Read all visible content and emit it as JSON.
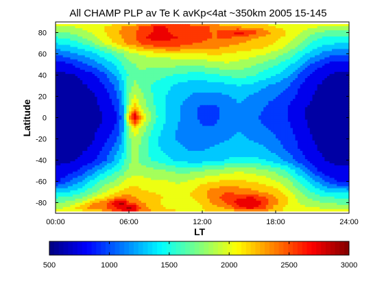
{
  "chart_data": {
    "type": "heatmap",
    "title": "All CHAMP PLP av Te K avKp<4at ~350km 2005 15-145",
    "xlabel": "LT",
    "ylabel": "Latitude",
    "x_ticks": [
      "00:00",
      "06:00",
      "12:00",
      "18:00",
      "24:00"
    ],
    "y_ticks": [
      "-80",
      "-60",
      "-40",
      "-20",
      "0",
      "20",
      "40",
      "60",
      "80"
    ],
    "xlim": [
      0,
      24
    ],
    "ylim": [
      -90,
      90
    ],
    "colorbar": {
      "ticks": [
        "500",
        "1000",
        "1500",
        "2000",
        "2500",
        "3000"
      ],
      "range": [
        500,
        3000
      ],
      "colormap": "jet"
    },
    "grid": false,
    "lt_nodes": [
      0,
      1,
      2,
      3,
      4,
      5,
      5.5,
      6,
      6.5,
      7,
      8,
      9,
      10,
      11,
      12,
      13,
      14,
      15,
      16,
      17,
      18,
      19,
      20,
      21,
      22,
      23,
      24
    ],
    "lat_nodes": [
      -88,
      -85,
      -80,
      -75,
      -70,
      -60,
      -50,
      -40,
      -30,
      -20,
      -10,
      0,
      10,
      20,
      30,
      40,
      50,
      60,
      65,
      70,
      75,
      80,
      85,
      88
    ],
    "values": [
      [
        2050,
        2050,
        2050,
        2050,
        2300,
        2500,
        2600,
        2650,
        2600,
        2400,
        2300,
        2200,
        2100,
        2100,
        2100,
        2100,
        2150,
        2200,
        2250,
        2300,
        2100,
        2100,
        2100,
        2100,
        2100,
        2050,
        2050
      ],
      [
        1900,
        1950,
        2200,
        2350,
        2400,
        2650,
        2750,
        2850,
        2800,
        2400,
        2200,
        2100,
        2050,
        2000,
        2100,
        2200,
        2300,
        2600,
        2700,
        2500,
        2200,
        2050,
        2000,
        1950,
        1900,
        1900,
        1900
      ],
      [
        1700,
        1800,
        1900,
        2250,
        2400,
        2800,
        2900,
        2500,
        2400,
        2300,
        2200,
        2050,
        2000,
        2000,
        2150,
        2350,
        2500,
        2750,
        2850,
        2600,
        2350,
        2100,
        1900,
        1800,
        1750,
        1700,
        1700
      ],
      [
        1550,
        1600,
        1700,
        1900,
        2100,
        2300,
        2400,
        2350,
        2300,
        2200,
        2150,
        2100,
        2050,
        2100,
        2200,
        2400,
        2550,
        2600,
        2650,
        2500,
        2300,
        2100,
        1850,
        1700,
        1600,
        1550,
        1550
      ],
      [
        1350,
        1400,
        1500,
        1700,
        1900,
        2100,
        2150,
        2200,
        2200,
        2150,
        2100,
        2050,
        2000,
        2100,
        2250,
        2400,
        2450,
        2400,
        2350,
        2250,
        2200,
        2000,
        1750,
        1550,
        1400,
        1350,
        1350
      ],
      [
        800,
        1000,
        1200,
        1450,
        1650,
        1800,
        1900,
        2000,
        2050,
        2000,
        1950,
        1950,
        1900,
        1950,
        2050,
        2100,
        2150,
        2150,
        2100,
        2050,
        1950,
        1800,
        1550,
        1300,
        1050,
        850,
        800
      ],
      [
        700,
        750,
        900,
        1100,
        1350,
        1550,
        1650,
        1800,
        1850,
        1850,
        1800,
        1750,
        1700,
        1700,
        1750,
        1800,
        1850,
        1900,
        1850,
        1800,
        1700,
        1550,
        1250,
        950,
        750,
        700,
        700
      ],
      [
        650,
        650,
        700,
        800,
        1000,
        1300,
        1500,
        1700,
        1800,
        1700,
        1550,
        1450,
        1350,
        1300,
        1300,
        1350,
        1400,
        1450,
        1450,
        1400,
        1300,
        1150,
        950,
        780,
        680,
        650,
        650
      ],
      [
        650,
        650,
        650,
        700,
        900,
        1150,
        1350,
        1700,
        1850,
        1700,
        1450,
        1350,
        1250,
        1200,
        1200,
        1250,
        1300,
        1300,
        1300,
        1250,
        1150,
        1000,
        850,
        700,
        650,
        650,
        650
      ],
      [
        650,
        650,
        650,
        650,
        800,
        1000,
        1250,
        1700,
        1900,
        1750,
        1450,
        1300,
        1200,
        1150,
        1150,
        1150,
        1200,
        1250,
        1200,
        1150,
        1050,
        950,
        800,
        680,
        650,
        650,
        650
      ],
      [
        650,
        650,
        650,
        650,
        700,
        900,
        1200,
        1800,
        2100,
        1900,
        1550,
        1350,
        1200,
        1100,
        1050,
        1050,
        1150,
        1200,
        1150,
        1050,
        1000,
        900,
        750,
        650,
        650,
        650,
        650
      ],
      [
        650,
        650,
        650,
        650,
        680,
        850,
        1150,
        2300,
        2850,
        2200,
        1650,
        1400,
        1250,
        1100,
        1000,
        1000,
        1100,
        1150,
        1100,
        1000,
        950,
        850,
        700,
        650,
        650,
        650,
        650
      ],
      [
        650,
        650,
        650,
        650,
        700,
        900,
        1200,
        1900,
        2200,
        1900,
        1600,
        1400,
        1250,
        1100,
        1000,
        1000,
        1100,
        1200,
        1150,
        1050,
        950,
        850,
        700,
        650,
        650,
        650,
        650
      ],
      [
        650,
        650,
        650,
        650,
        750,
        1000,
        1300,
        1750,
        1950,
        1800,
        1550,
        1400,
        1300,
        1200,
        1150,
        1150,
        1200,
        1250,
        1200,
        1100,
        1050,
        950,
        800,
        680,
        650,
        650,
        650
      ],
      [
        650,
        650,
        650,
        700,
        850,
        1100,
        1350,
        1650,
        1800,
        1700,
        1550,
        1450,
        1350,
        1300,
        1300,
        1300,
        1350,
        1400,
        1350,
        1250,
        1150,
        1050,
        850,
        700,
        650,
        650,
        650
      ],
      [
        650,
        650,
        700,
        800,
        1000,
        1250,
        1450,
        1600,
        1700,
        1700,
        1650,
        1600,
        1550,
        1500,
        1500,
        1550,
        1600,
        1650,
        1600,
        1500,
        1400,
        1250,
        1000,
        800,
        700,
        650,
        650
      ],
      [
        750,
        800,
        950,
        1100,
        1250,
        1450,
        1600,
        1700,
        1750,
        1800,
        1800,
        1800,
        1800,
        1800,
        1800,
        1850,
        1900,
        1850,
        1800,
        1700,
        1600,
        1450,
        1250,
        1000,
        850,
        750,
        750
      ],
      [
        1050,
        1150,
        1250,
        1350,
        1500,
        1650,
        1750,
        1850,
        1900,
        1950,
        2000,
        2000,
        2050,
        2050,
        2100,
        2150,
        2100,
        2050,
        2000,
        1950,
        1850,
        1700,
        1500,
        1300,
        1150,
        1050,
        1050
      ],
      [
        1250,
        1300,
        1400,
        1500,
        1700,
        1900,
        2000,
        2100,
        2150,
        2250,
        2350,
        2400,
        2400,
        2300,
        2300,
        2300,
        2250,
        2200,
        2150,
        2100,
        2000,
        1850,
        1650,
        1450,
        1300,
        1250,
        1250
      ],
      [
        1400,
        1450,
        1550,
        1700,
        1950,
        2150,
        2250,
        2350,
        2400,
        2500,
        2600,
        2600,
        2550,
        2500,
        2450,
        2400,
        2350,
        2300,
        2250,
        2200,
        2100,
        1950,
        1750,
        1550,
        1450,
        1400,
        1400
      ],
      [
        1550,
        1600,
        1700,
        1850,
        2050,
        2200,
        2300,
        2400,
        2450,
        2600,
        2700,
        2700,
        2650,
        2550,
        2500,
        2450,
        2500,
        2400,
        2300,
        2250,
        2150,
        2050,
        1850,
        1650,
        1550,
        1550,
        1550
      ],
      [
        1700,
        1750,
        1850,
        1950,
        2100,
        2250,
        2350,
        2400,
        2450,
        2550,
        2650,
        2650,
        2600,
        2550,
        2500,
        2450,
        2600,
        2750,
        2600,
        2400,
        2250,
        2100,
        1950,
        1800,
        1700,
        1700,
        1700
      ],
      [
        1900,
        1900,
        1950,
        2000,
        2100,
        2200,
        2300,
        2400,
        2400,
        2500,
        2650,
        2650,
        2600,
        2600,
        2550,
        2400,
        2300,
        2300,
        2250,
        2200,
        2100,
        2050,
        2000,
        1950,
        1900,
        1900,
        1900
      ],
      [
        2000,
        2000,
        2000,
        2000,
        2050,
        2100,
        2150,
        2200,
        2200,
        2300,
        2400,
        2450,
        2400,
        2400,
        2350,
        2300,
        2200,
        2150,
        2100,
        2100,
        2050,
        2050,
        2050,
        2050,
        2000,
        2000,
        2000
      ]
    ]
  }
}
